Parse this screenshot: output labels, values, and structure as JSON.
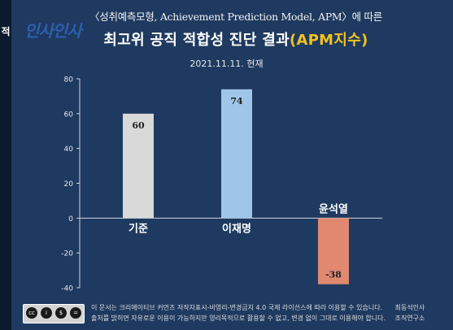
{
  "header": {
    "line1": "〈성취예측모형, Achievement Prediction Model, APM〉에 따른",
    "line2_main": "최고위 공직 적합성 진단 결과",
    "line2_accent": "(APM지수)",
    "date": "2021.11.11. 현재"
  },
  "watermark": "인사인사",
  "left_mark": "적",
  "footer": {
    "text_line1": "이 문서는 크리에이티브 커먼즈 저작자표시-비영리-변경금지 4.0 국제 라이선스에 따라 이용할 수 있습니다.",
    "text_line2": "출처를 밝히면 자유로운 이용이 가능하지만 영리목적으로 활용할 수 없고, 변경 없이 그대로 이용해야 합니다.",
    "org_line1": "최동석인사",
    "org_line2": "조직연구소",
    "cc_labels": [
      "cc",
      "i",
      "$",
      "="
    ]
  },
  "colors": {
    "background": "#1f3a60",
    "axis": "#cfd6df",
    "accent": "#f2c31c"
  },
  "chart_data": {
    "type": "bar",
    "categories": [
      "기준",
      "이재명",
      "윤석열"
    ],
    "values": [
      60,
      74,
      -38
    ],
    "value_labels": [
      "60",
      "74",
      "-38"
    ],
    "bar_colors": [
      "#d9d9d9",
      "#9fc6e8",
      "#e08870"
    ],
    "ylim": [
      -40,
      80
    ],
    "yticks": [
      "80",
      "60",
      "40",
      "20",
      "0",
      "-20",
      "-40"
    ],
    "ytick_values": [
      80,
      60,
      40,
      20,
      0,
      -20,
      -40
    ],
    "title": "",
    "xlabel": "",
    "ylabel": "",
    "grid": false,
    "legend": "none"
  }
}
